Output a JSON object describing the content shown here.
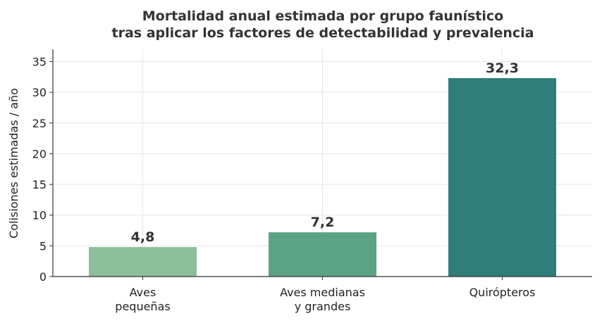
{
  "chart_data": {
    "type": "bar",
    "title": "Mortalidad anual estimada por grupo faunístico",
    "subtitle": "tras aplicar los factores de detectabilidad y prevalencia",
    "xlabel": "",
    "ylabel": "Colisiones estimadas / año",
    "categories": [
      [
        "Aves",
        "pequeñas"
      ],
      [
        "Aves medianas",
        "y grandes"
      ],
      [
        "Quirópteros"
      ]
    ],
    "values": [
      4.8,
      7.2,
      32.3
    ],
    "value_labels": [
      "4,8",
      "7,2",
      "32,3"
    ],
    "colors": [
      "#8dbf9c",
      "#5ba383",
      "#2e7d78"
    ],
    "ylim": [
      0,
      37
    ],
    "yticks": [
      0,
      5,
      10,
      15,
      20,
      25,
      30,
      35
    ],
    "grid": true,
    "legend": "none"
  }
}
